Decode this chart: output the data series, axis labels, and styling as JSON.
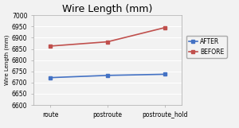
{
  "title": "Wire Length (mm)",
  "xlabel": "",
  "ylabel": "Wire Length (mm)",
  "categories": [
    "route",
    "postroute",
    "postroute_hold"
  ],
  "series": [
    {
      "name": "AFTER",
      "values": [
        6722,
        6732,
        6737
      ],
      "color": "#4472C4",
      "marker": "s",
      "linewidth": 1.2,
      "markersize": 3
    },
    {
      "name": "BEFORE",
      "values": [
        6863,
        6882,
        6945
      ],
      "color": "#C0504D",
      "marker": "s",
      "linewidth": 1.2,
      "markersize": 3
    }
  ],
  "ylim": [
    6600,
    7000
  ],
  "yticks": [
    6600,
    6650,
    6700,
    6750,
    6800,
    6850,
    6900,
    6950,
    7000
  ],
  "background_color": "#f2f2f2",
  "plot_bg_color": "#f2f2f2",
  "grid_color": "#ffffff",
  "title_fontsize": 9,
  "axis_fontsize": 5,
  "tick_fontsize": 5.5,
  "legend_fontsize": 5.5
}
